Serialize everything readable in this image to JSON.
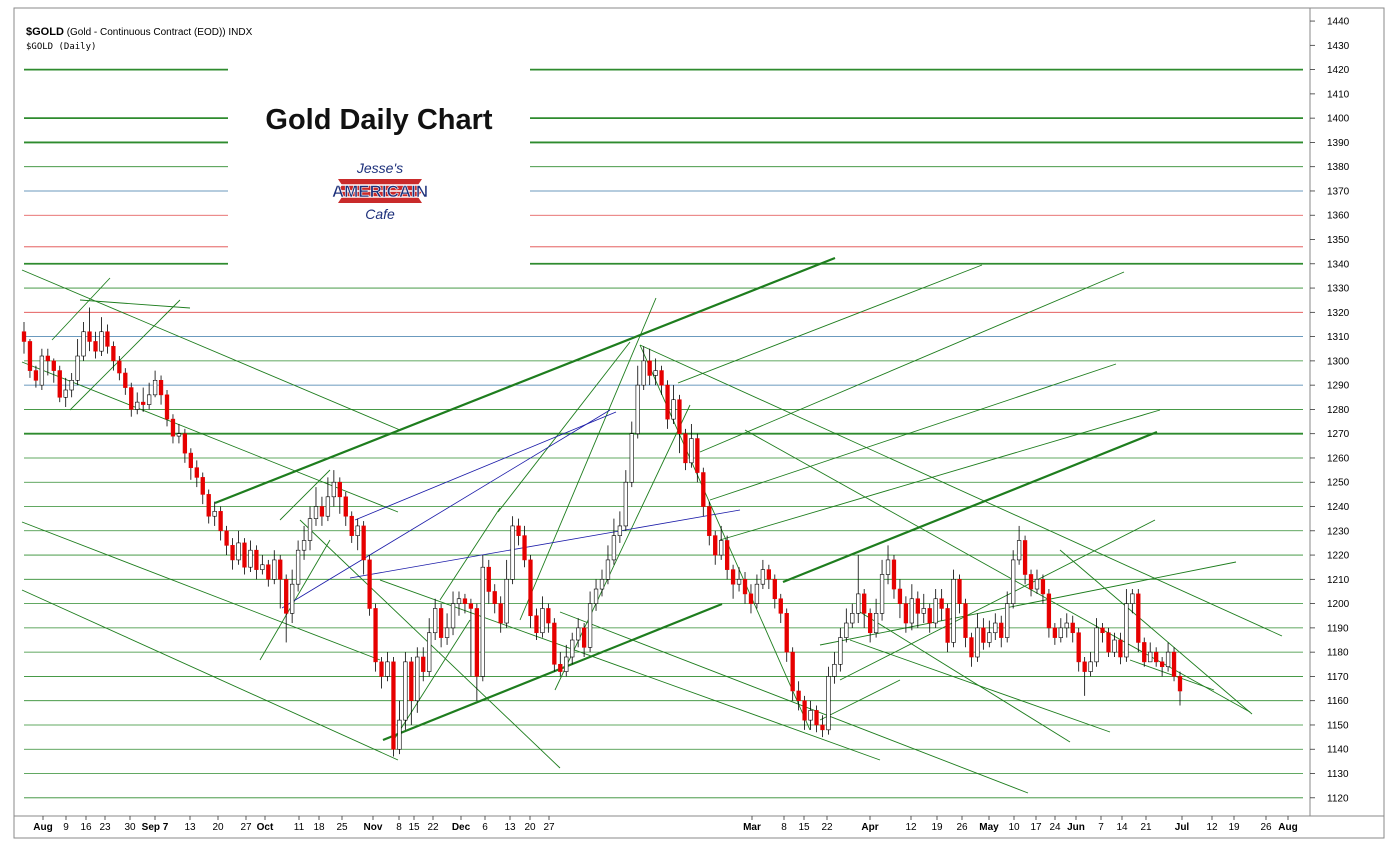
{
  "header": {
    "symbol": "$GOLD",
    "description": "(Gold - Continuous Contract (EOD)) INDX",
    "sub": "$GOLD (Daily)"
  },
  "logo": {
    "line1": "Jesse's",
    "line2": "AMERICAIN",
    "line3": "Cafe"
  },
  "chart_data": {
    "type": "candlestick",
    "title": "Gold Daily Chart",
    "y_axis": {
      "position": "right",
      "ylim": [
        1112,
        1446
      ],
      "ticks": [
        1120,
        1130,
        1140,
        1150,
        1160,
        1170,
        1180,
        1190,
        1200,
        1210,
        1220,
        1230,
        1240,
        1250,
        1260,
        1270,
        1280,
        1290,
        1300,
        1310,
        1320,
        1330,
        1340,
        1350,
        1360,
        1370,
        1380,
        1390,
        1400,
        1410,
        1420,
        1430,
        1440
      ],
      "tick_labels": [
        "1120",
        "1130",
        "1140",
        "1150",
        "1160",
        "1170",
        "1180",
        "1190",
        "1200",
        "1210",
        "1220",
        "1230",
        "1240",
        "1250",
        "1260",
        "1270",
        "1280",
        "1290",
        "1300",
        "1310",
        "1320",
        "1330",
        "1340",
        "1350",
        "1360",
        "1370",
        "1380",
        "1390",
        "1400",
        "1410",
        "1420",
        "1430",
        "1440"
      ]
    },
    "x_axis": {
      "tick_labels": [
        "Aug",
        "9",
        "16",
        "23",
        "30",
        "Sep 7",
        "13",
        "20",
        "27",
        "Oct",
        "11",
        "18",
        "25",
        "Nov",
        "8",
        "15",
        "22",
        "Dec",
        "6",
        "13",
        "20",
        "27",
        "Mar",
        "8",
        "15",
        "22",
        "Apr",
        "12",
        "19",
        "26",
        "May",
        "10",
        "17",
        "24",
        "Jun",
        "7",
        "14",
        "21",
        "Jul",
        "12",
        "19",
        "26",
        "Aug"
      ],
      "bold_labels": [
        "Aug",
        "Sep 7",
        "Oct",
        "Nov",
        "Dec",
        "Mar",
        "Apr",
        "May",
        "Jun",
        "Jul"
      ]
    },
    "colors": {
      "up": "#ffffff",
      "down": "#e60000",
      "wick": "#000000",
      "grid_green": "#2e8b2e",
      "grid_red": "#e04848",
      "grid_blue": "#3a78a8",
      "trend": "#1e7d1e",
      "channel": "#1a1aa8"
    },
    "horizontal_levels": [
      {
        "price": 1420,
        "color": "green",
        "weight": "heavy"
      },
      {
        "price": 1400,
        "color": "green",
        "weight": "heavy"
      },
      {
        "price": 1390,
        "color": "green",
        "weight": "heavy"
      },
      {
        "price": 1380,
        "color": "green",
        "weight": "light"
      },
      {
        "price": 1370,
        "color": "blue",
        "weight": "light"
      },
      {
        "price": 1360,
        "color": "red",
        "weight": "light"
      },
      {
        "price": 1347,
        "color": "red",
        "weight": "light"
      },
      {
        "price": 1340,
        "color": "green",
        "weight": "heavy"
      },
      {
        "price": 1330,
        "color": "green",
        "weight": "light"
      },
      {
        "price": 1320,
        "color": "red",
        "weight": "light"
      },
      {
        "price": 1310,
        "color": "blue",
        "weight": "light"
      },
      {
        "price": 1300,
        "color": "green",
        "weight": "light"
      },
      {
        "price": 1290,
        "color": "blue",
        "weight": "light"
      },
      {
        "price": 1280,
        "color": "green",
        "weight": "light"
      },
      {
        "price": 1270,
        "color": "green",
        "weight": "heavy"
      },
      {
        "price": 1260,
        "color": "green",
        "weight": "light"
      },
      {
        "price": 1250,
        "color": "green",
        "weight": "light"
      },
      {
        "price": 1240,
        "color": "green",
        "weight": "light"
      },
      {
        "price": 1230,
        "color": "green",
        "weight": "light"
      },
      {
        "price": 1220,
        "color": "green",
        "weight": "light"
      },
      {
        "price": 1210,
        "color": "green",
        "weight": "light"
      },
      {
        "price": 1200,
        "color": "green",
        "weight": "light"
      },
      {
        "price": 1190,
        "color": "green",
        "weight": "light"
      },
      {
        "price": 1180,
        "color": "green",
        "weight": "light"
      },
      {
        "price": 1170,
        "color": "green",
        "weight": "light"
      },
      {
        "price": 1160,
        "color": "green",
        "weight": "light"
      },
      {
        "price": 1150,
        "color": "green",
        "weight": "light"
      },
      {
        "price": 1140,
        "color": "green",
        "weight": "light"
      },
      {
        "price": 1130,
        "color": "green",
        "weight": "light"
      },
      {
        "price": 1120,
        "color": "green",
        "weight": "light"
      }
    ],
    "candles": [
      [
        1312,
        1308,
        1316,
        1303
      ],
      [
        1308,
        1296,
        1309,
        1293
      ],
      [
        1296,
        1292,
        1298,
        1289
      ],
      [
        1290,
        1302,
        1305,
        1288
      ],
      [
        1302,
        1300,
        1305,
        1294
      ],
      [
        1300,
        1296,
        1301,
        1291
      ],
      [
        1296,
        1285,
        1298,
        1283
      ],
      [
        1285,
        1288,
        1293,
        1281
      ],
      [
        1288,
        1292,
        1295,
        1285
      ],
      [
        1292,
        1302,
        1309,
        1290
      ],
      [
        1302,
        1312,
        1316,
        1300
      ],
      [
        1312,
        1308,
        1322,
        1304
      ],
      [
        1308,
        1304,
        1312,
        1301
      ],
      [
        1304,
        1312,
        1318,
        1302
      ],
      [
        1312,
        1306,
        1315,
        1303
      ],
      [
        1306,
        1300,
        1308,
        1296
      ],
      [
        1300,
        1295,
        1302,
        1292
      ],
      [
        1295,
        1289,
        1297,
        1286
      ],
      [
        1289,
        1280,
        1291,
        1277
      ],
      [
        1280,
        1283,
        1287,
        1278
      ],
      [
        1283,
        1282,
        1289,
        1279
      ],
      [
        1282,
        1286,
        1291,
        1280
      ],
      [
        1286,
        1292,
        1296,
        1285
      ],
      [
        1292,
        1286,
        1294,
        1282
      ],
      [
        1286,
        1276,
        1288,
        1273
      ],
      [
        1276,
        1269,
        1278,
        1266
      ],
      [
        1269,
        1270,
        1274,
        1266
      ],
      [
        1270,
        1262,
        1272,
        1258
      ],
      [
        1262,
        1256,
        1264,
        1251
      ],
      [
        1256,
        1252,
        1259,
        1248
      ],
      [
        1252,
        1245,
        1254,
        1241
      ],
      [
        1245,
        1236,
        1247,
        1233
      ],
      [
        1236,
        1238,
        1242,
        1232
      ],
      [
        1238,
        1230,
        1240,
        1226
      ],
      [
        1230,
        1224,
        1232,
        1220
      ],
      [
        1224,
        1218,
        1227,
        1214
      ],
      [
        1218,
        1225,
        1230,
        1216
      ],
      [
        1225,
        1215,
        1227,
        1212
      ],
      [
        1215,
        1222,
        1226,
        1213
      ],
      [
        1222,
        1214,
        1224,
        1210
      ],
      [
        1214,
        1216,
        1220,
        1212
      ],
      [
        1216,
        1210,
        1218,
        1207
      ],
      [
        1210,
        1218,
        1222,
        1208
      ],
      [
        1218,
        1210,
        1220,
        1198
      ],
      [
        1210,
        1196,
        1212,
        1184
      ],
      [
        1196,
        1208,
        1214,
        1192
      ],
      [
        1208,
        1222,
        1226,
        1205
      ],
      [
        1222,
        1226,
        1232,
        1218
      ],
      [
        1226,
        1235,
        1240,
        1222
      ],
      [
        1235,
        1240,
        1248,
        1232
      ],
      [
        1240,
        1236,
        1244,
        1232
      ],
      [
        1236,
        1244,
        1252,
        1234
      ],
      [
        1244,
        1250,
        1255,
        1240
      ],
      [
        1250,
        1244,
        1252,
        1237
      ],
      [
        1244,
        1236,
        1246,
        1232
      ],
      [
        1236,
        1228,
        1238,
        1225
      ],
      [
        1228,
        1232,
        1235,
        1222
      ],
      [
        1232,
        1218,
        1234,
        1212
      ],
      [
        1218,
        1198,
        1220,
        1195
      ],
      [
        1198,
        1176,
        1200,
        1172
      ],
      [
        1176,
        1170,
        1178,
        1165
      ],
      [
        1170,
        1176,
        1180,
        1168
      ],
      [
        1176,
        1140,
        1178,
        1137
      ],
      [
        1140,
        1152,
        1160,
        1138
      ],
      [
        1152,
        1176,
        1180,
        1148
      ],
      [
        1176,
        1160,
        1178,
        1150
      ],
      [
        1160,
        1178,
        1182,
        1155
      ],
      [
        1178,
        1172,
        1182,
        1168
      ],
      [
        1172,
        1188,
        1194,
        1170
      ],
      [
        1188,
        1198,
        1202,
        1185
      ],
      [
        1198,
        1186,
        1200,
        1182
      ],
      [
        1186,
        1190,
        1196,
        1183
      ],
      [
        1190,
        1200,
        1205,
        1187
      ],
      [
        1200,
        1202,
        1205,
        1195
      ],
      [
        1202,
        1200,
        1204,
        1196
      ],
      [
        1200,
        1198,
        1202,
        1170
      ],
      [
        1198,
        1170,
        1200,
        1160
      ],
      [
        1170,
        1215,
        1220,
        1168
      ],
      [
        1215,
        1205,
        1218,
        1200
      ],
      [
        1205,
        1200,
        1208,
        1196
      ],
      [
        1200,
        1192,
        1203,
        1188
      ],
      [
        1192,
        1210,
        1218,
        1190
      ],
      [
        1210,
        1232,
        1236,
        1208
      ],
      [
        1232,
        1228,
        1235,
        1224
      ],
      [
        1228,
        1218,
        1232,
        1215
      ],
      [
        1218,
        1195,
        1220,
        1190
      ],
      [
        1195,
        1188,
        1198,
        1185
      ],
      [
        1188,
        1198,
        1203,
        1186
      ],
      [
        1198,
        1192,
        1200,
        1188
      ],
      [
        1192,
        1175,
        1194,
        1172
      ],
      [
        1175,
        1172,
        1180,
        1170
      ],
      [
        1172,
        1178,
        1183,
        1170
      ],
      [
        1178,
        1185,
        1188,
        1175
      ],
      [
        1185,
        1190,
        1194,
        1182
      ],
      [
        1190,
        1182,
        1192,
        1178
      ],
      [
        1182,
        1200,
        1205,
        1180
      ],
      [
        1200,
        1206,
        1210,
        1197
      ],
      [
        1206,
        1210,
        1214,
        1203
      ],
      [
        1210,
        1218,
        1224,
        1208
      ],
      [
        1218,
        1228,
        1235,
        1216
      ],
      [
        1228,
        1232,
        1238,
        1225
      ],
      [
        1232,
        1250,
        1255,
        1230
      ],
      [
        1250,
        1270,
        1275,
        1248
      ],
      [
        1270,
        1290,
        1298,
        1268
      ],
      [
        1290,
        1300,
        1306,
        1288
      ],
      [
        1300,
        1294,
        1305,
        1290
      ],
      [
        1294,
        1296,
        1301,
        1290
      ],
      [
        1296,
        1290,
        1298,
        1286
      ],
      [
        1290,
        1276,
        1292,
        1272
      ],
      [
        1276,
        1284,
        1290,
        1274
      ],
      [
        1284,
        1270,
        1286,
        1262
      ],
      [
        1270,
        1258,
        1272,
        1255
      ],
      [
        1258,
        1268,
        1274,
        1256
      ],
      [
        1268,
        1254,
        1270,
        1250
      ],
      [
        1254,
        1240,
        1256,
        1236
      ],
      [
        1240,
        1228,
        1242,
        1224
      ],
      [
        1228,
        1220,
        1230,
        1216
      ],
      [
        1220,
        1226,
        1232,
        1218
      ],
      [
        1226,
        1214,
        1228,
        1210
      ],
      [
        1214,
        1208,
        1216,
        1202
      ],
      [
        1208,
        1210,
        1215,
        1205
      ],
      [
        1210,
        1204,
        1213,
        1200
      ],
      [
        1204,
        1200,
        1208,
        1196
      ],
      [
        1200,
        1208,
        1212,
        1198
      ],
      [
        1208,
        1214,
        1218,
        1206
      ],
      [
        1214,
        1210,
        1216,
        1206
      ],
      [
        1210,
        1202,
        1212,
        1198
      ],
      [
        1202,
        1196,
        1204,
        1192
      ],
      [
        1196,
        1180,
        1198,
        1176
      ],
      [
        1180,
        1164,
        1182,
        1160
      ],
      [
        1164,
        1160,
        1168,
        1156
      ],
      [
        1160,
        1152,
        1162,
        1148
      ],
      [
        1152,
        1156,
        1160,
        1148
      ],
      [
        1156,
        1150,
        1158,
        1147
      ],
      [
        1150,
        1148,
        1154,
        1145
      ],
      [
        1148,
        1170,
        1174,
        1146
      ],
      [
        1170,
        1175,
        1180,
        1167
      ],
      [
        1175,
        1186,
        1190,
        1172
      ],
      [
        1186,
        1192,
        1198,
        1184
      ],
      [
        1192,
        1196,
        1200,
        1190
      ],
      [
        1196,
        1204,
        1220,
        1192
      ],
      [
        1204,
        1196,
        1206,
        1190
      ],
      [
        1196,
        1188,
        1198,
        1184
      ],
      [
        1188,
        1196,
        1202,
        1186
      ],
      [
        1196,
        1212,
        1218,
        1193
      ],
      [
        1212,
        1218,
        1224,
        1208
      ],
      [
        1218,
        1206,
        1220,
        1202
      ],
      [
        1206,
        1200,
        1210,
        1194
      ],
      [
        1200,
        1192,
        1203,
        1188
      ],
      [
        1192,
        1202,
        1208,
        1189
      ],
      [
        1202,
        1196,
        1205,
        1190
      ],
      [
        1196,
        1198,
        1204,
        1192
      ],
      [
        1198,
        1192,
        1200,
        1188
      ],
      [
        1192,
        1202,
        1206,
        1190
      ],
      [
        1202,
        1198,
        1206,
        1193
      ],
      [
        1198,
        1184,
        1200,
        1180
      ],
      [
        1184,
        1210,
        1214,
        1182
      ],
      [
        1210,
        1200,
        1212,
        1196
      ],
      [
        1200,
        1186,
        1202,
        1182
      ],
      [
        1186,
        1178,
        1188,
        1174
      ],
      [
        1178,
        1190,
        1196,
        1176
      ],
      [
        1190,
        1184,
        1194,
        1181
      ],
      [
        1184,
        1188,
        1193,
        1182
      ],
      [
        1188,
        1192,
        1196,
        1185
      ],
      [
        1192,
        1186,
        1195,
        1182
      ],
      [
        1186,
        1200,
        1205,
        1184
      ],
      [
        1200,
        1218,
        1222,
        1198
      ],
      [
        1218,
        1226,
        1232,
        1216
      ],
      [
        1226,
        1212,
        1228,
        1208
      ],
      [
        1212,
        1206,
        1214,
        1203
      ],
      [
        1206,
        1210,
        1214,
        1204
      ],
      [
        1210,
        1204,
        1212,
        1200
      ],
      [
        1204,
        1190,
        1206,
        1186
      ],
      [
        1190,
        1186,
        1192,
        1183
      ],
      [
        1186,
        1190,
        1194,
        1184
      ],
      [
        1190,
        1192,
        1196,
        1186
      ],
      [
        1192,
        1188,
        1195,
        1184
      ],
      [
        1188,
        1176,
        1190,
        1172
      ],
      [
        1176,
        1172,
        1178,
        1162
      ],
      [
        1172,
        1176,
        1180,
        1170
      ],
      [
        1176,
        1190,
        1194,
        1174
      ],
      [
        1190,
        1188,
        1192,
        1184
      ],
      [
        1188,
        1180,
        1190,
        1178
      ],
      [
        1180,
        1185,
        1188,
        1178
      ],
      [
        1185,
        1178,
        1188,
        1175
      ],
      [
        1178,
        1200,
        1206,
        1176
      ],
      [
        1200,
        1204,
        1206,
        1196
      ],
      [
        1204,
        1184,
        1206,
        1180
      ],
      [
        1184,
        1176,
        1186,
        1174
      ],
      [
        1176,
        1180,
        1184,
        1176
      ],
      [
        1180,
        1176,
        1182,
        1174
      ],
      [
        1176,
        1174,
        1178,
        1170
      ],
      [
        1174,
        1180,
        1184,
        1172
      ],
      [
        1180,
        1170,
        1182,
        1168
      ],
      [
        1170,
        1164,
        1172,
        1158
      ]
    ]
  }
}
